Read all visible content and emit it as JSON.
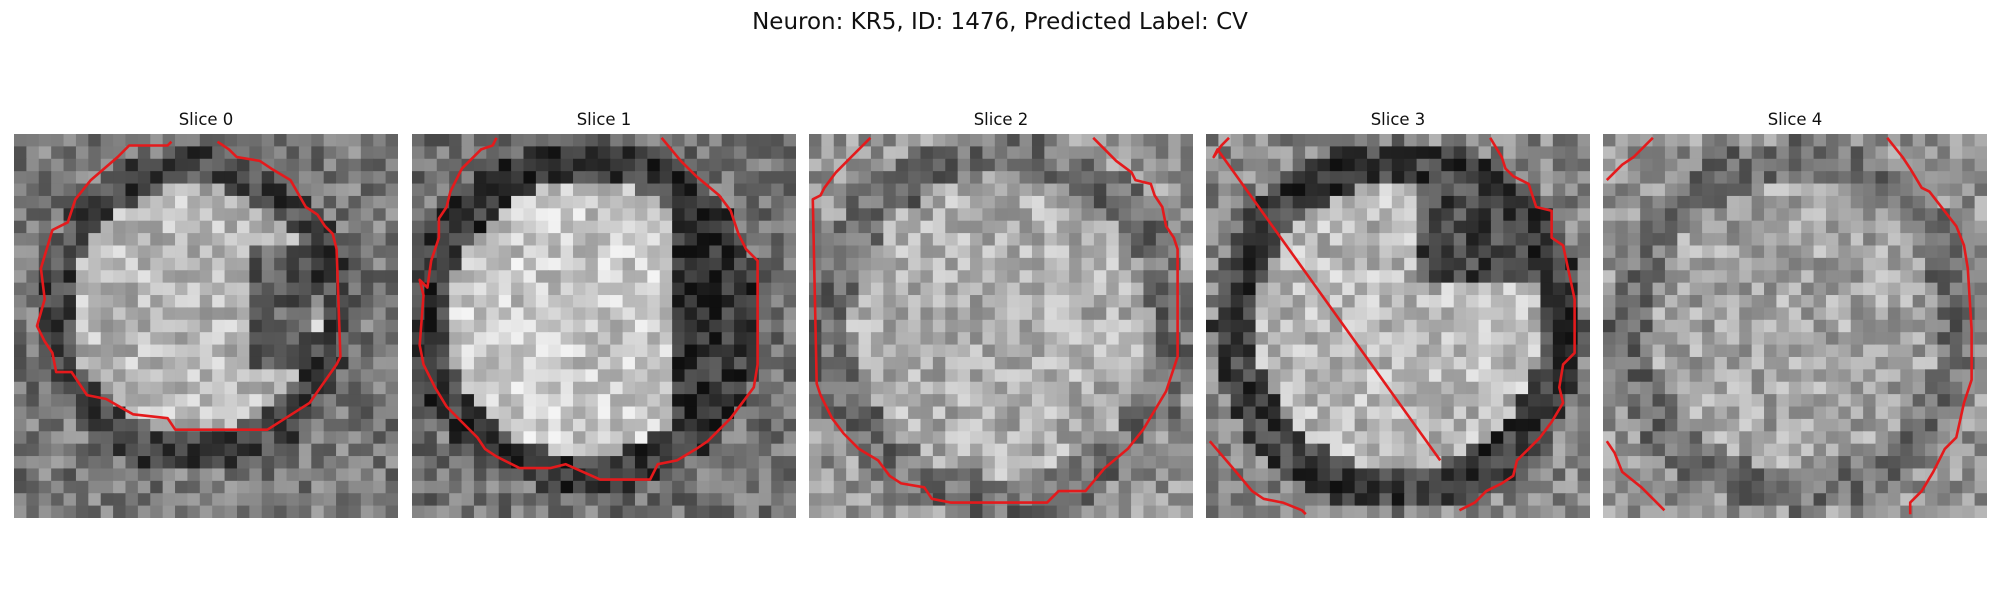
{
  "figure": {
    "title": "Neuron: KR5, ID: 1476, Predicted Label: CV"
  },
  "panels": [
    {
      "title": "Slice 0"
    },
    {
      "title": "Slice 1"
    },
    {
      "title": "Slice 2"
    },
    {
      "title": "Slice 3"
    },
    {
      "title": "Slice 4"
    }
  ],
  "colors": {
    "contour": "#e41a1c",
    "background": "#ffffff"
  }
}
